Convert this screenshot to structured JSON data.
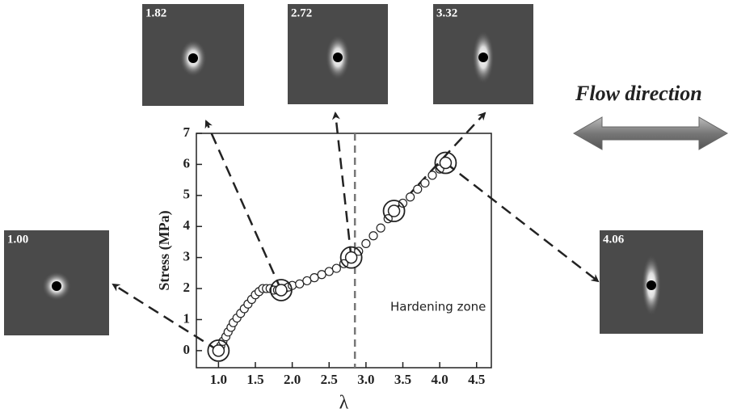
{
  "chart_data": {
    "type": "scatter",
    "xlabel": "λ",
    "ylabel": "Stress (MPa)",
    "xlim": [
      0.7,
      4.7
    ],
    "ylim": [
      -0.55,
      7
    ],
    "xticks": [
      {
        "value": 1,
        "label": "1.0"
      },
      {
        "value": 1.5,
        "label": "1.5"
      },
      {
        "value": 2,
        "label": "2.0"
      },
      {
        "value": 2.5,
        "label": "2.5"
      },
      {
        "value": 3,
        "label": "3.0"
      },
      {
        "value": 3.5,
        "label": "3.5"
      },
      {
        "value": 4,
        "label": "4.0"
      },
      {
        "value": 4.5,
        "label": "4.5"
      }
    ],
    "yticks": [
      0,
      1,
      2,
      3,
      4,
      5,
      6,
      7
    ],
    "vline": 2.85,
    "vline_label": "Hardening zone",
    "series": [
      {
        "color": "#222222",
        "x": [
          1.0,
          1.03,
          1.06,
          1.1,
          1.13,
          1.17,
          1.2,
          1.25,
          1.3,
          1.35,
          1.4,
          1.45,
          1.5,
          1.55,
          1.6,
          1.65,
          1.7,
          1.75,
          1.8,
          1.85,
          1.9,
          1.95,
          2.0,
          2.1,
          2.2,
          2.3,
          2.4,
          2.5,
          2.6,
          2.7,
          2.8,
          2.9,
          3.0,
          3.1,
          3.2,
          3.3,
          3.4,
          3.5,
          3.6,
          3.7,
          3.8,
          3.9,
          4.0,
          4.08
        ],
        "values": [
          0,
          0.15,
          0.3,
          0.45,
          0.6,
          0.75,
          0.9,
          1.05,
          1.2,
          1.35,
          1.5,
          1.65,
          1.8,
          1.9,
          2.0,
          2.0,
          2.0,
          1.95,
          1.95,
          1.95,
          2.0,
          2.05,
          2.1,
          2.15,
          2.25,
          2.35,
          2.45,
          2.55,
          2.65,
          2.8,
          3.0,
          3.2,
          3.45,
          3.7,
          3.95,
          4.25,
          4.5,
          4.75,
          4.95,
          5.2,
          5.4,
          5.65,
          5.85,
          6.05
        ]
      },
      {
        "color": "#222222",
        "x": [
          1.0,
          1.85,
          2.8,
          3.38,
          4.08
        ],
        "values": [
          0,
          1.95,
          3.0,
          4.5,
          6.05
        ]
      }
    ],
    "insets": [
      "1.00",
      "1.82",
      "2.72",
      "3.32",
      "4.06"
    ],
    "annotation": "Flow direction"
  }
}
